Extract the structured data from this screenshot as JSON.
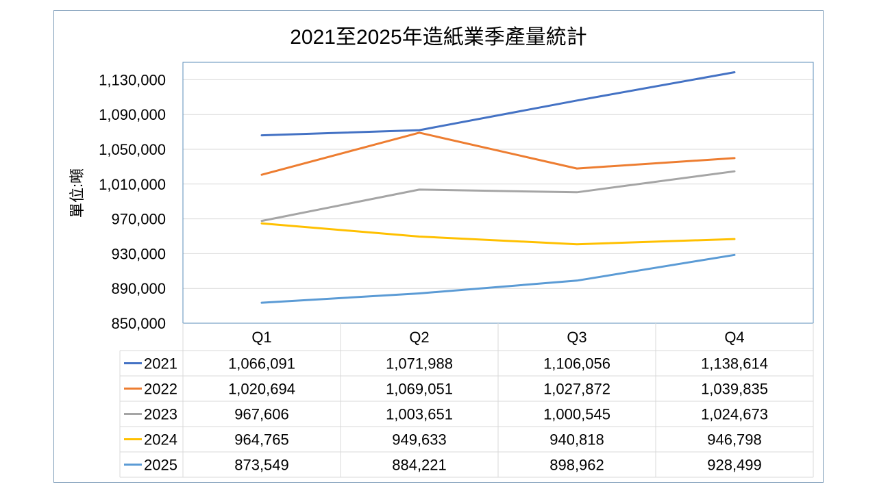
{
  "chart_data": {
    "type": "line",
    "title": "2021至2025年造紙業季產量統計",
    "ylabel": "單位:噸",
    "xlabel": "",
    "categories": [
      "Q1",
      "Q2",
      "Q3",
      "Q4"
    ],
    "ylim": [
      850000,
      1150000
    ],
    "yticks": [
      850000,
      890000,
      930000,
      970000,
      1010000,
      1050000,
      1090000,
      1130000
    ],
    "ytick_labels": [
      "850,000",
      "890,000",
      "930,000",
      "970,000",
      "1,010,000",
      "1,050,000",
      "1,090,000",
      "1,130,000"
    ],
    "grid": true,
    "legend": "data-table",
    "series": [
      {
        "name": "2021",
        "color": "#4472c4",
        "values": [
          1066091,
          1071988,
          1106056,
          1138614
        ],
        "labels": [
          "1,066,091",
          "1,071,988",
          "1,106,056",
          "1,138,614"
        ]
      },
      {
        "name": "2022",
        "color": "#ed7d31",
        "values": [
          1020694,
          1069051,
          1027872,
          1039835
        ],
        "labels": [
          "1,020,694",
          "1,069,051",
          "1,027,872",
          "1,039,835"
        ]
      },
      {
        "name": "2023",
        "color": "#a5a5a5",
        "values": [
          967606,
          1003651,
          1000545,
          1024673
        ],
        "labels": [
          "967,606",
          "1,003,651",
          "1,000,545",
          "1,024,673"
        ]
      },
      {
        "name": "2024",
        "color": "#ffc000",
        "values": [
          964765,
          949633,
          940818,
          946798
        ],
        "labels": [
          "964,765",
          "949,633",
          "940,818",
          "946,798"
        ]
      },
      {
        "name": "2025",
        "color": "#5b9bd5",
        "values": [
          873549,
          884221,
          898962,
          928499
        ],
        "labels": [
          "873,549",
          "884,221",
          "898,962",
          "928,499"
        ]
      }
    ]
  }
}
